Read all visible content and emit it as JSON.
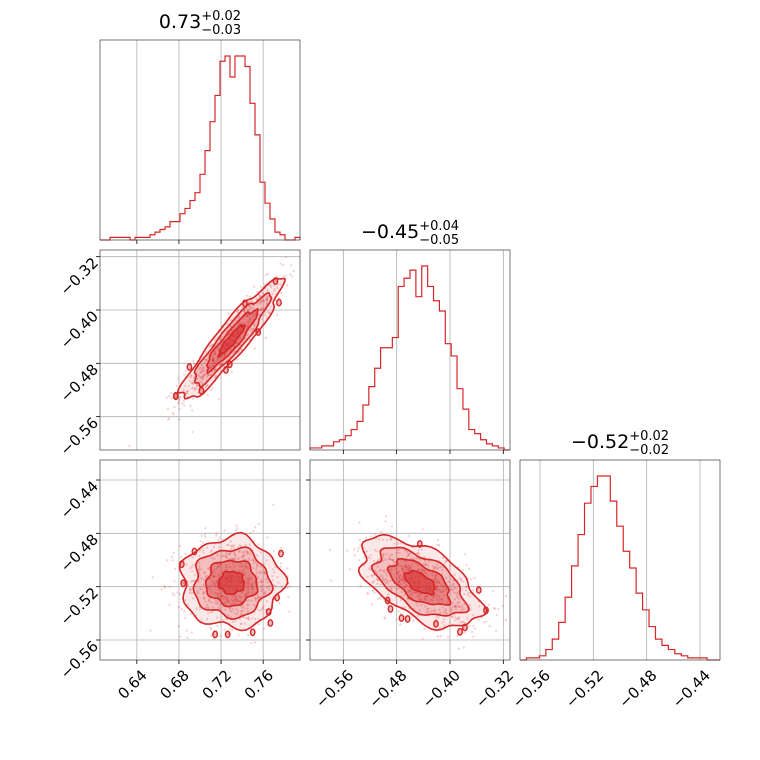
{
  "chart_data": {
    "type": "corner",
    "color": "#d62728",
    "grid": true,
    "params": [
      {
        "name": "",
        "median": "0.73",
        "plus": "+0.02",
        "minus": "−0.03",
        "range": [
          0.605,
          0.795
        ],
        "ticks": [
          0.64,
          0.68,
          0.72,
          0.76
        ],
        "tick_labels": [
          "0.64",
          "0.68",
          "0.72",
          "0.76"
        ],
        "hist": [
          0,
          0,
          1,
          1,
          1,
          1,
          0,
          1,
          1,
          1,
          2,
          3,
          4,
          5,
          7,
          7,
          10,
          12,
          15,
          18,
          25,
          34,
          45,
          55,
          68,
          70,
          62,
          70,
          70,
          66,
          52,
          40,
          22,
          14,
          8,
          3,
          2,
          0,
          0,
          1
        ]
      },
      {
        "name": "",
        "median": "−0.45",
        "plus": "+0.04",
        "minus": "−0.05",
        "range": [
          -0.61,
          -0.31
        ],
        "ticks": [
          -0.56,
          -0.48,
          -0.4,
          -0.32
        ],
        "tick_labels": [
          "−0.56",
          "−0.48",
          "−0.40",
          "−0.32"
        ],
        "y_ticks": [
          -0.56,
          -0.48,
          -0.4,
          -0.32
        ],
        "y_tick_labels": [
          "−0.56",
          "−0.48",
          "−0.40",
          "−0.32"
        ],
        "hist": [
          1,
          1,
          2,
          2,
          4,
          5,
          7,
          10,
          14,
          22,
          31,
          40,
          50,
          50,
          55,
          80,
          84,
          88,
          75,
          90,
          80,
          73,
          68,
          52,
          46,
          30,
          20,
          10,
          8,
          5,
          3,
          2,
          1,
          0
        ]
      },
      {
        "name": "",
        "median": "−0.52",
        "plus": "+0.02",
        "minus": "−0.02",
        "range": [
          -0.575,
          -0.425
        ],
        "ticks": [
          -0.56,
          -0.52,
          -0.48,
          -0.44
        ],
        "tick_labels": [
          "−0.56",
          "−0.52",
          "−0.48",
          "−0.44"
        ],
        "y_ticks": [
          -0.56,
          -0.52,
          -0.48,
          -0.44
        ],
        "y_tick_labels": [
          "−0.56",
          "−0.52",
          "−0.48",
          "−0.44"
        ],
        "hist": [
          0,
          1,
          1,
          2,
          5,
          10,
          18,
          30,
          45,
          60,
          75,
          83,
          88,
          88,
          76,
          64,
          52,
          44,
          32,
          24,
          16,
          10,
          7,
          5,
          3,
          2,
          1,
          1,
          1,
          0,
          0
        ]
      }
    ],
    "pairs": [
      {
        "x_param": 0,
        "y_param": 1,
        "mean": [
          0.73,
          -0.445
        ],
        "sd": [
          0.024,
          0.045
        ],
        "corr": 0.92
      },
      {
        "x_param": 0,
        "y_param": 2,
        "mean": [
          0.73,
          -0.517
        ],
        "sd": [
          0.024,
          0.017
        ],
        "corr": 0.0
      },
      {
        "x_param": 1,
        "y_param": 2,
        "mean": [
          -0.445,
          -0.517
        ],
        "sd": [
          0.045,
          0.017
        ],
        "corr": -0.55
      }
    ]
  }
}
